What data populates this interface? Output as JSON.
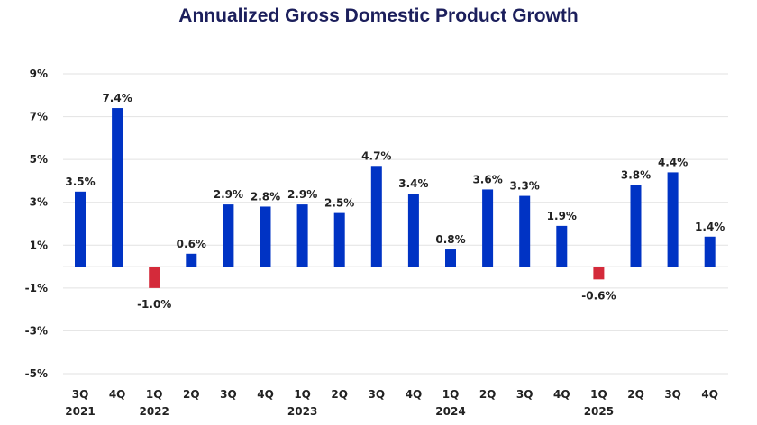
{
  "chart_data": {
    "type": "bar",
    "title": "Annualized Gross Domestic Product Growth",
    "xlabel": "",
    "ylabel": "",
    "ylim": [
      -5,
      9
    ],
    "yticks": [
      9,
      7,
      5,
      3,
      1,
      -1,
      -3,
      -5
    ],
    "ytick_labels": [
      "9%",
      "7%",
      "5%",
      "3%",
      "1%",
      "-1%",
      "-3%",
      "-5%"
    ],
    "grid": true,
    "categories": [
      "3Q",
      "4Q",
      "1Q",
      "2Q",
      "3Q",
      "4Q",
      "1Q",
      "2Q",
      "3Q",
      "4Q",
      "1Q",
      "2Q",
      "3Q",
      "4Q",
      "1Q",
      "2Q",
      "3Q",
      "4Q"
    ],
    "year_labels": [
      "2021",
      "",
      "2022",
      "",
      "",
      "",
      "2023",
      "",
      "",
      "",
      "2024",
      "",
      "",
      "",
      "2025",
      "",
      "",
      ""
    ],
    "values": [
      3.5,
      7.4,
      -1.0,
      0.6,
      2.9,
      2.8,
      2.9,
      2.5,
      4.7,
      3.4,
      0.8,
      3.6,
      3.3,
      1.9,
      -0.6,
      3.8,
      4.4,
      1.4
    ],
    "data_labels": [
      "3.5%",
      "7.4%",
      "-1.0%",
      "0.6%",
      "2.9%",
      "2.8%",
      "2.9%",
      "2.5%",
      "4.7%",
      "3.4%",
      "0.8%",
      "3.6%",
      "3.3%",
      "1.9%",
      "-0.6%",
      "3.8%",
      "4.4%",
      "1.4%"
    ],
    "colors": {
      "positive": "#0033c4",
      "negative": "#d42a3a",
      "grid": "#e2e2e2",
      "title": "#1c1f5c"
    }
  }
}
